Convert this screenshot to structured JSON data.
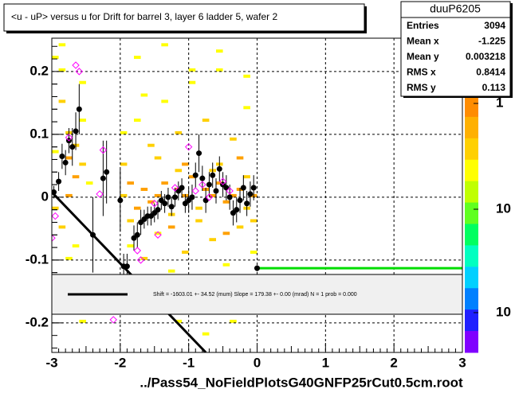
{
  "chart_data": {
    "type": "profile",
    "title": "<u - uP>       versus   u for Drift for barrel 3, layer 6 ladder 5, wafer 2",
    "footer": "../Pass54_NoFieldPlotsG40GNFP25rCut0.5cm.root",
    "xlim": [
      -3,
      3
    ],
    "ylim": [
      -0.247,
      0.253
    ],
    "xticks": [
      -3,
      -2,
      -1,
      0,
      1,
      2,
      3
    ],
    "yticks": [
      -0.2,
      -0.1,
      0,
      0.1,
      0.2
    ],
    "grid": true,
    "stats": {
      "title": "duuP6205",
      "names": [
        "Entries",
        "Mean x",
        "Mean y",
        "RMS x",
        "RMS y"
      ],
      "values": [
        3094,
        -1.225,
        0.003218,
        0.8414,
        0.113
      ]
    },
    "palette": {
      "colors": [
        "#ff8c00",
        "#ffb000",
        "#ffd000",
        "#ffff00",
        "#c0ff00",
        "#60ff20",
        "#00ff60",
        "#00ffc0",
        "#00d0ff",
        "#0080ff",
        "#2020ff",
        "#8000ff"
      ],
      "labels": [
        "1",
        "10",
        "10"
      ]
    },
    "cells": {
      "xbin": 0.1,
      "ybin": 0.005,
      "colors": [
        "#ffff00",
        "#ffd000",
        "#ffa000"
      ],
      "x": [
        -3,
        -2.9,
        -2.9,
        -2.8,
        -2.8,
        -2.7,
        -2.7,
        -2.6,
        -2.6,
        -2.5,
        -3,
        -2.9,
        -2.8,
        -2.7,
        -2.6,
        -2.9,
        -2.8,
        -2.7,
        -2.6,
        -3,
        -2,
        -1.9,
        -1.8,
        -1.7,
        -1.6,
        -1.5,
        -1.4,
        -1.3,
        -1.2,
        -1.1,
        -1,
        -0.9,
        -0.8,
        -0.7,
        -0.6,
        -0.5,
        -0.4,
        -0.3,
        -0.2,
        -0.1,
        -2,
        -1.8,
        -1.6,
        -1.4,
        -1.2,
        -1,
        -0.8,
        -0.6,
        -0.4,
        -0.2,
        -1.9,
        -1.7,
        -1.5,
        -1.3,
        -1.1,
        -0.9,
        -0.7,
        -0.5,
        -0.3,
        -0.1,
        -1.8,
        -1.4,
        -1,
        -0.6,
        -0.2,
        -1.6,
        -1.2,
        -0.8,
        -0.4,
        -2,
        -1.5,
        -1.1,
        -0.7,
        -0.3,
        -1.9,
        -1.3,
        -0.9,
        -0.5,
        -0.1,
        -1.7,
        -1.2,
        -0.6,
        -0.2,
        -1.4,
        -0.8,
        -0.4
      ],
      "y": [
        0.22,
        0.2,
        0.15,
        0.1,
        0.06,
        0.08,
        0.03,
        0.12,
        0.18,
        0.02,
        -0.02,
        -0.05,
        -0.1,
        -0.15,
        -0.2,
        0.24,
        0.0,
        -0.08,
        0.05,
        0.07,
        0.0,
        0.02,
        -0.02,
        0.01,
        -0.01,
        0.0,
        0.02,
        -0.03,
        0.01,
        0.0,
        0.03,
        -0.02,
        0.01,
        0.0,
        0.02,
        -0.01,
        0.0,
        0.01,
        -0.02,
        0.0,
        0.1,
        0.12,
        0.08,
        0.15,
        0.1,
        0.18,
        0.12,
        0.2,
        0.09,
        0.14,
        -0.08,
        -0.1,
        -0.06,
        -0.12,
        -0.09,
        -0.15,
        -0.07,
        -0.11,
        -0.05,
        -0.09,
        0.22,
        0.24,
        0.2,
        0.23,
        0.19,
        -0.18,
        -0.2,
        -0.22,
        -0.17,
        0.05,
        0.06,
        0.05,
        0.04,
        0.06,
        -0.04,
        -0.05,
        -0.04,
        -0.06,
        -0.04,
        0.16,
        0.04,
        0.05,
        0.03,
        -0.14,
        -0.13,
        -0.2
      ],
      "counts": [
        1,
        1,
        2,
        2,
        3,
        2,
        3,
        1,
        1,
        1,
        2,
        2,
        1,
        1,
        1,
        1,
        3,
        1,
        2,
        1,
        2,
        3,
        3,
        3,
        3,
        3,
        3,
        2,
        3,
        3,
        3,
        2,
        3,
        3,
        3,
        3,
        3,
        3,
        2,
        3,
        1,
        1,
        2,
        1,
        2,
        1,
        2,
        1,
        2,
        1,
        1,
        2,
        1,
        1,
        2,
        1,
        2,
        1,
        2,
        1,
        1,
        1,
        1,
        1,
        1,
        1,
        1,
        1,
        1,
        2,
        2,
        3,
        2,
        3,
        2,
        3,
        2,
        3,
        2,
        1,
        2,
        2,
        2,
        1,
        1,
        1
      ]
    },
    "series": [
      {
        "name": "profile",
        "color": "#000000",
        "x": [
          -2.97,
          -2.9,
          -2.85,
          -2.8,
          -2.75,
          -2.7,
          -2.65,
          -2.6,
          -2.4,
          -2.25,
          -2.2,
          -2.0,
          -1.95,
          -1.9,
          -1.8,
          -1.75,
          -1.7,
          -1.65,
          -1.6,
          -1.55,
          -1.5,
          -1.45,
          -1.4,
          -1.35,
          -1.3,
          -1.25,
          -1.2,
          -1.15,
          -1.1,
          -1.05,
          -1.0,
          -0.95,
          -0.9,
          -0.85,
          -0.8,
          -0.75,
          -0.7,
          -0.65,
          -0.6,
          -0.55,
          -0.5,
          -0.45,
          -0.4,
          -0.35,
          -0.3,
          -0.25,
          -0.2,
          -0.15,
          -0.1,
          -0.05,
          0.0
        ],
        "values": [
          0.008,
          0.025,
          0.065,
          0.055,
          0.09,
          0.08,
          0.105,
          0.14,
          -0.06,
          0.03,
          0.04,
          -0.005,
          -0.11,
          -0.11,
          -0.065,
          -0.06,
          -0.04,
          -0.035,
          -0.03,
          -0.03,
          -0.025,
          -0.02,
          -0.005,
          -0.01,
          0.0,
          -0.015,
          0.0,
          0.01,
          0.015,
          -0.01,
          -0.005,
          0.0,
          0.035,
          0.07,
          0.03,
          -0.005,
          0.02,
          0.035,
          0.01,
          0.045,
          0.02,
          0.015,
          0.0,
          -0.025,
          -0.02,
          -0.005,
          0.015,
          -0.01,
          0.005,
          0.015,
          -0.113
        ],
        "errors": [
          0.01,
          0.015,
          0.02,
          0.02,
          0.02,
          0.03,
          0.03,
          0.04,
          0.06,
          0.06,
          0.05,
          0.05,
          0.02,
          0.02,
          0.02,
          0.02,
          0.02,
          0.015,
          0.015,
          0.015,
          0.015,
          0.015,
          0.015,
          0.015,
          0.015,
          0.015,
          0.015,
          0.015,
          0.015,
          0.015,
          0.02,
          0.02,
          0.02,
          0.03,
          0.02,
          0.02,
          0.02,
          0.02,
          0.02,
          0.02,
          0.02,
          0.02,
          0.02,
          0.02,
          0.02,
          0.02,
          0.02,
          0.02,
          0.02,
          0.02,
          0.005
        ]
      },
      {
        "name": "rms",
        "color": "#ff00ff",
        "x": [
          -3.0,
          -2.95,
          -2.75,
          -2.65,
          -2.6,
          -2.3,
          -2.25,
          -2.1,
          -1.75,
          -1.7,
          -1.5,
          -1.45,
          -1.2,
          -1.0,
          -0.9,
          -0.8,
          -0.7,
          -0.5,
          -0.4
        ],
        "values": [
          -0.065,
          -0.03,
          0.095,
          0.21,
          0.2,
          0.005,
          0.075,
          -0.195,
          -0.085,
          -0.1,
          -0.01,
          -0.06,
          0.015,
          0.08,
          0.01,
          0.02,
          0.0,
          0.025,
          0.01
        ]
      }
    ],
    "fit": {
      "x": [
        -3,
        -0.75
      ],
      "y": [
        0.008,
        -0.247
      ],
      "color": "#000000"
    },
    "fit2": {
      "x": [
        0,
        3
      ],
      "y": [
        -0.113,
        -0.113
      ],
      "color": "#00dd00"
    },
    "legend_text": "Shift =  -1603.01 +- 34.52 (mum) Slope =    179.38 +- 0.00 (mrad)  N = 1 prob = 0.000"
  }
}
